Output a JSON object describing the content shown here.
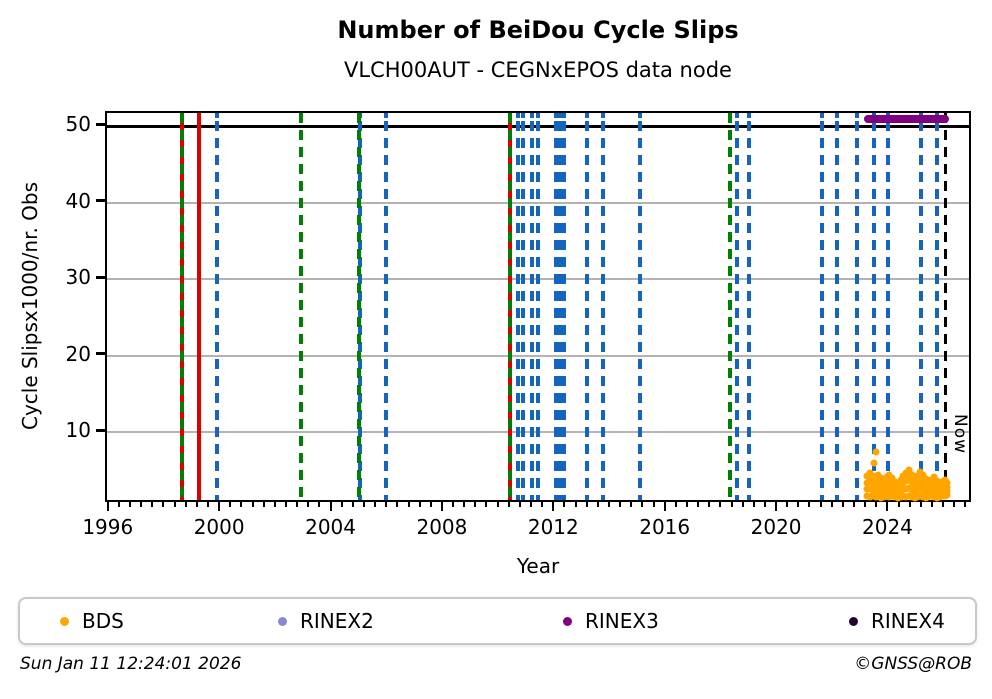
{
  "footer": {
    "timestamp": "Sun Jan 11 12:24:01 2026",
    "credit": "©GNSS@ROB"
  },
  "chart_data": {
    "type": "scatter",
    "title": "Number of BeiDou Cycle Slips",
    "subtitle": "VLCH00AUT - CEGNxEPOS data node",
    "xlabel": "Year",
    "ylabel": "Cycle Slipsx1000/nr. Obs",
    "xlim": [
      1995.9,
      2027.0
    ],
    "ylim": [
      0.6,
      51.7
    ],
    "x_major_ticks": [
      1996,
      2000,
      2004,
      2008,
      2012,
      2016,
      2020,
      2024
    ],
    "x_minor_tick_step": 0.4,
    "y_major_ticks": [
      10,
      20,
      30,
      40,
      50
    ],
    "grid": "horizontal-gray",
    "black_hline_value": 50,
    "colors": {
      "red": "#dd0000",
      "green": "#008000",
      "blue": "#1465be",
      "black": "#000000",
      "grid": "#b3b3b3",
      "bds_orange": "#ffa500",
      "rinex2_purple": "#8888cc",
      "rinex3_purple": "#800080",
      "rinex4_dark": "#250030"
    },
    "legend_position": "bottom",
    "legend": [
      {
        "label": "BDS",
        "color_key": "bds_orange"
      },
      {
        "label": "RINEX2",
        "color_key": "rinex2_purple"
      },
      {
        "label": "RINEX3",
        "color_key": "rinex3_purple"
      },
      {
        "label": "RINEX4",
        "color_key": "rinex4_dark"
      }
    ],
    "vline_groups": [
      {
        "name": "red-solid-events",
        "color_key": "red",
        "style": "solid",
        "width": 4,
        "years": [
          1998.6,
          1999.22,
          2010.36
        ]
      },
      {
        "name": "blue-dashed-events",
        "color_key": "blue",
        "style": "dashed",
        "width": 4,
        "years": [
          1999.84,
          2004.99,
          2005.91,
          2010.65,
          2010.83,
          2011.17,
          2011.38,
          2012.04,
          2012.17,
          2012.3,
          2013.12,
          2013.7,
          2015.03,
          2018.54,
          2018.94,
          2021.56,
          2022.1,
          2022.85,
          2023.46,
          2023.96,
          2025.15,
          2025.72
        ]
      },
      {
        "name": "green-dashed-events",
        "color_key": "green",
        "style": "dashed",
        "width": 4,
        "years": [
          1998.58,
          2002.86,
          2004.96,
          2010.36,
          2018.29
        ]
      }
    ],
    "now_marker": {
      "label": "Now",
      "year": 2026.03,
      "style": "dashed",
      "color_key": "black",
      "width": 3
    },
    "rinex3_segment": {
      "year_start": 2023.1,
      "year_end": 2026.15,
      "value": 50.9,
      "color_key": "rinex3_purple"
    },
    "series": [
      {
        "name": "BDS",
        "color_key": "bds_orange",
        "marker_px": 7,
        "points": [
          [
            2023.2,
            1.6
          ],
          [
            2023.2,
            2.5
          ],
          [
            2023.2,
            3.4
          ],
          [
            2023.2,
            4.3
          ],
          [
            2023.3,
            1.5
          ],
          [
            2023.3,
            2.53
          ],
          [
            2023.3,
            3.57
          ],
          [
            2023.3,
            4.6
          ],
          [
            2023.4,
            1.8
          ],
          [
            2023.4,
            2.6
          ],
          [
            2023.4,
            3.4
          ],
          [
            2023.4,
            4.2
          ],
          [
            2023.5,
            1.5
          ],
          [
            2023.5,
            2.33
          ],
          [
            2023.5,
            3.17
          ],
          [
            2023.5,
            4.0
          ],
          [
            2023.6,
            1.6
          ],
          [
            2023.6,
            2.53
          ],
          [
            2023.6,
            3.47
          ],
          [
            2023.6,
            4.4
          ],
          [
            2023.7,
            1.4
          ],
          [
            2023.7,
            2.27
          ],
          [
            2023.7,
            3.13
          ],
          [
            2023.7,
            4.0
          ],
          [
            2023.8,
            1.5
          ],
          [
            2023.8,
            2.2
          ],
          [
            2023.8,
            2.9
          ],
          [
            2023.8,
            3.6
          ],
          [
            2023.9,
            1.6
          ],
          [
            2023.9,
            2.43
          ],
          [
            2023.9,
            3.27
          ],
          [
            2023.9,
            4.1
          ],
          [
            2024.0,
            1.5
          ],
          [
            2024.0,
            2.47
          ],
          [
            2024.0,
            3.43
          ],
          [
            2024.0,
            4.4
          ],
          [
            2024.1,
            1.7
          ],
          [
            2024.1,
            2.47
          ],
          [
            2024.1,
            3.23
          ],
          [
            2024.1,
            4.0
          ],
          [
            2024.2,
            1.5
          ],
          [
            2024.2,
            2.17
          ],
          [
            2024.2,
            2.83
          ],
          [
            2024.2,
            3.5
          ],
          [
            2024.3,
            1.4
          ],
          [
            2024.3,
            2.0
          ],
          [
            2024.3,
            2.6
          ],
          [
            2024.3,
            3.2
          ],
          [
            2024.4,
            1.5
          ],
          [
            2024.4,
            2.27
          ],
          [
            2024.4,
            3.03
          ],
          [
            2024.4,
            3.8
          ],
          [
            2024.5,
            1.6
          ],
          [
            2024.5,
            2.5
          ],
          [
            2024.5,
            3.4
          ],
          [
            2024.5,
            4.3
          ],
          [
            2024.6,
            1.5
          ],
          [
            2024.6,
            2.57
          ],
          [
            2024.6,
            3.63
          ],
          [
            2024.6,
            4.7
          ],
          [
            2024.7,
            1.6
          ],
          [
            2024.7,
            2.73
          ],
          [
            2024.7,
            3.87
          ],
          [
            2024.7,
            5.0
          ],
          [
            2024.8,
            1.5
          ],
          [
            2024.8,
            2.47
          ],
          [
            2024.8,
            3.43
          ],
          [
            2024.8,
            4.4
          ],
          [
            2024.9,
            1.4
          ],
          [
            2024.9,
            2.23
          ],
          [
            2024.9,
            3.07
          ],
          [
            2024.9,
            3.9
          ],
          [
            2025.0,
            1.5
          ],
          [
            2025.0,
            2.4
          ],
          [
            2025.0,
            3.3
          ],
          [
            2025.0,
            4.2
          ],
          [
            2025.1,
            1.6
          ],
          [
            2025.1,
            2.67
          ],
          [
            2025.1,
            3.73
          ],
          [
            2025.1,
            4.8
          ],
          [
            2025.2,
            1.5
          ],
          [
            2025.2,
            2.47
          ],
          [
            2025.2,
            3.43
          ],
          [
            2025.2,
            4.4
          ],
          [
            2025.3,
            1.4
          ],
          [
            2025.3,
            2.23
          ],
          [
            2025.3,
            3.07
          ],
          [
            2025.3,
            3.9
          ],
          [
            2025.4,
            1.5
          ],
          [
            2025.4,
            2.17
          ],
          [
            2025.4,
            2.83
          ],
          [
            2025.4,
            3.5
          ],
          [
            2025.5,
            1.6
          ],
          [
            2025.5,
            2.3
          ],
          [
            2025.5,
            3.0
          ],
          [
            2025.5,
            3.7
          ],
          [
            2025.6,
            1.5
          ],
          [
            2025.6,
            2.37
          ],
          [
            2025.6,
            3.23
          ],
          [
            2025.6,
            4.1
          ],
          [
            2025.7,
            1.4
          ],
          [
            2025.7,
            2.13
          ],
          [
            2025.7,
            2.87
          ],
          [
            2025.7,
            3.6
          ],
          [
            2025.8,
            1.5
          ],
          [
            2025.8,
            2.07
          ],
          [
            2025.8,
            2.63
          ],
          [
            2025.8,
            3.2
          ],
          [
            2025.9,
            1.6
          ],
          [
            2025.9,
            2.23
          ],
          [
            2025.9,
            2.87
          ],
          [
            2025.9,
            3.5
          ],
          [
            2026.0,
            1.7
          ],
          [
            2026.0,
            2.4
          ],
          [
            2026.0,
            3.1
          ],
          [
            2026.0,
            3.8
          ],
          [
            2026.05,
            1.8
          ],
          [
            2026.05,
            2.33
          ],
          [
            2026.05,
            2.87
          ],
          [
            2026.05,
            3.4
          ],
          [
            2023.46,
            5.9
          ],
          [
            2023.53,
            7.4
          ]
        ]
      }
    ]
  }
}
